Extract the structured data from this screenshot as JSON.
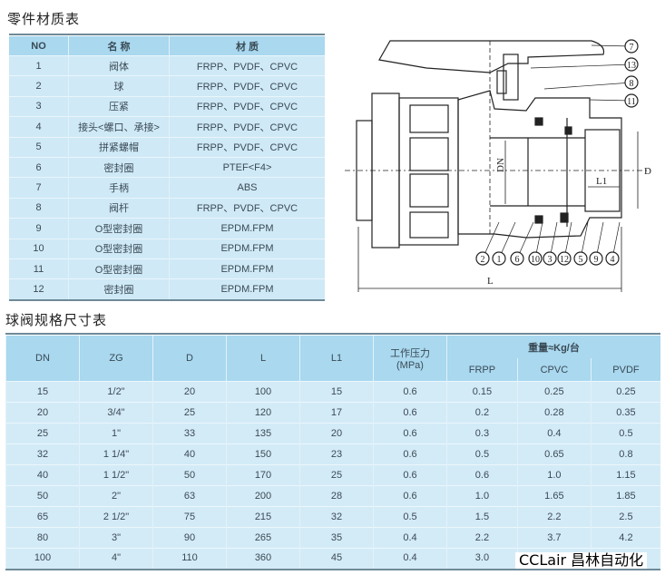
{
  "parts_table": {
    "title": "零件材质表",
    "headers": [
      "NO",
      "名 称",
      "材 质"
    ],
    "rows": [
      [
        "1",
        "阀体",
        "FRPP、PVDF、CPVC"
      ],
      [
        "2",
        "球",
        "FRPP、PVDF、CPVC"
      ],
      [
        "3",
        "压紧",
        "FRPP、PVDF、CPVC"
      ],
      [
        "4",
        "接头<螺口、承接>",
        "FRPP、PVDF、CPVC"
      ],
      [
        "5",
        "拼紧螺帽",
        "FRPP、PVDF、CPVC"
      ],
      [
        "6",
        "密封圈",
        "PTEF<F4>"
      ],
      [
        "7",
        "手柄",
        "ABS"
      ],
      [
        "8",
        "阀杆",
        "FRPP、PVDF、CPVC"
      ],
      [
        "9",
        "O型密封圈",
        "EPDM.FPM"
      ],
      [
        "10",
        "O型密封圈",
        "EPDM.FPM"
      ],
      [
        "11",
        "O型密封圈",
        "EPDM.FPM"
      ],
      [
        "12",
        "密封圈",
        "EPDM.FPM"
      ]
    ]
  },
  "diagram": {
    "callouts_right": [
      "7",
      "13",
      "8",
      "11"
    ],
    "callouts_bottom": [
      "2",
      "1",
      "6",
      "10",
      "3",
      "12",
      "5",
      "9",
      "4"
    ],
    "dim_labels": {
      "dn": "DN",
      "d": "D",
      "l1": "L1",
      "l": "L"
    }
  },
  "spec_table": {
    "title": "球阀规格尺寸表",
    "headers": [
      "DN",
      "ZG",
      "D",
      "L",
      "L1",
      "工作压力",
      "(MPa)",
      "重量≈Kg/台"
    ],
    "weight_subheaders": [
      "FRPP",
      "CPVC",
      "PVDF"
    ],
    "rows": [
      [
        "15",
        "1/2\"",
        "20",
        "100",
        "15",
        "0.6",
        "0.15",
        "0.25",
        "0.25"
      ],
      [
        "20",
        "3/4\"",
        "25",
        "120",
        "17",
        "0.6",
        "0.2",
        "0.28",
        "0.35"
      ],
      [
        "25",
        "1\"",
        "33",
        "135",
        "20",
        "0.6",
        "0.3",
        "0.4",
        "0.5"
      ],
      [
        "32",
        "1 1/4\"",
        "40",
        "150",
        "23",
        "0.6",
        "0.5",
        "0.65",
        "0.8"
      ],
      [
        "40",
        "1 1/2\"",
        "50",
        "170",
        "25",
        "0.6",
        "0.6",
        "1.0",
        "1.15"
      ],
      [
        "50",
        "2\"",
        "63",
        "200",
        "28",
        "0.6",
        "1.0",
        "1.65",
        "1.85"
      ],
      [
        "65",
        "2 1/2\"",
        "75",
        "215",
        "32",
        "0.5",
        "1.5",
        "2.2",
        "2.5"
      ],
      [
        "80",
        "3\"",
        "90",
        "265",
        "35",
        "0.4",
        "2.2",
        "3.7",
        "4.2"
      ],
      [
        "100",
        "4\"",
        "110",
        "360",
        "45",
        "0.4",
        "3.0",
        "",
        ""
      ]
    ]
  },
  "watermark": "CCLair 昌林自动化"
}
